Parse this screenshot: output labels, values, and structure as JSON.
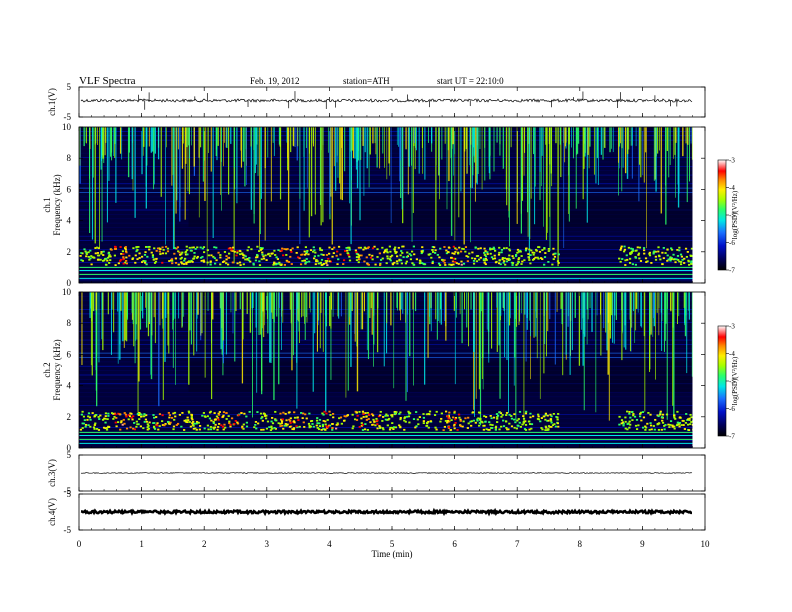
{
  "header": {
    "title": "VLF  Spectra",
    "date": "Feb. 19, 2012",
    "station": "station=ATH",
    "start_ut": "start  UT  =   22:10:0"
  },
  "chart_data": [
    {
      "type": "line",
      "name": "ch1-waveform",
      "ylabel": "ch.1(V)",
      "ylim": [
        -5,
        5
      ],
      "yticks": [
        5,
        -5
      ],
      "xlim": [
        0,
        10
      ],
      "baseline": 0.5,
      "spike_times": [
        0.95,
        1.05,
        1.12,
        1.85,
        2.05,
        2.7,
        3.35,
        3.45,
        3.95,
        4.0,
        4.1,
        5.25,
        5.6,
        6.25,
        7.55,
        7.9,
        8.05,
        8.6,
        8.65,
        9.2,
        9.45,
        9.55
      ]
    },
    {
      "type": "heatmap",
      "name": "ch1-spectrogram",
      "ylabel": "ch.1\nFrequency  (kHz)",
      "ylim": [
        0,
        10
      ],
      "yticks": [
        0,
        2,
        4,
        6,
        8,
        10
      ],
      "xlim": [
        0,
        10
      ],
      "colorbar": {
        "label": "log(PSD)(V²/Hz)",
        "ticks": [
          -3,
          -4,
          -5,
          -6,
          -7
        ],
        "range": [
          -7,
          -3
        ]
      },
      "band_center_khz": 1.8,
      "hot_times": [
        0.7,
        1.4,
        2.4,
        3.4,
        4.1,
        4.6,
        6.0
      ],
      "band_gap": [
        7.65,
        8.6
      ],
      "quiet_segment": [
        1.75,
        9.8
      ]
    },
    {
      "type": "heatmap",
      "name": "ch2-spectrogram",
      "ylabel": "ch.2\nFrequency  (kHz)",
      "ylim": [
        0,
        10
      ],
      "yticks": [
        0,
        2,
        4,
        6,
        8,
        10
      ],
      "xlim": [
        0,
        10
      ],
      "colorbar": {
        "label": "log(PSD)(V²/Hz)",
        "ticks": [
          -3,
          -4,
          -5,
          -6,
          -7
        ],
        "range": [
          -7,
          -3
        ]
      },
      "band_center_khz": 1.8,
      "hot_times": [
        0.7,
        1.4,
        2.4,
        3.4,
        4.1,
        4.6,
        6.0
      ],
      "band_gap": [
        7.65,
        8.6
      ],
      "quiet_segment": [
        1.75,
        9.8
      ]
    },
    {
      "type": "line",
      "name": "ch3-waveform",
      "ylabel": "ch.3(V)",
      "ylim": [
        -5,
        5
      ],
      "yticks": [
        5,
        -5
      ],
      "xlim": [
        0,
        10
      ],
      "baseline": 0
    },
    {
      "type": "line",
      "name": "ch4-waveform",
      "ylabel": "ch.4(V)",
      "ylim": [
        -5,
        5
      ],
      "yticks": [
        5,
        -5
      ],
      "xlim": [
        0,
        10
      ],
      "baseline": 0
    }
  ],
  "x_axis": {
    "label": "Time  (min)",
    "ticks": [
      0,
      1,
      2,
      3,
      4,
      5,
      6,
      7,
      8,
      9,
      10
    ],
    "data_end": 9.8
  },
  "colors": {
    "colormap": [
      "#000000",
      "#00005a",
      "#0010c8",
      "#1a6fff",
      "#00e6e6",
      "#2bff6a",
      "#a6ff00",
      "#ffee00",
      "#ff8800",
      "#ff0000",
      "#ff9a9a",
      "#ffffff"
    ]
  }
}
